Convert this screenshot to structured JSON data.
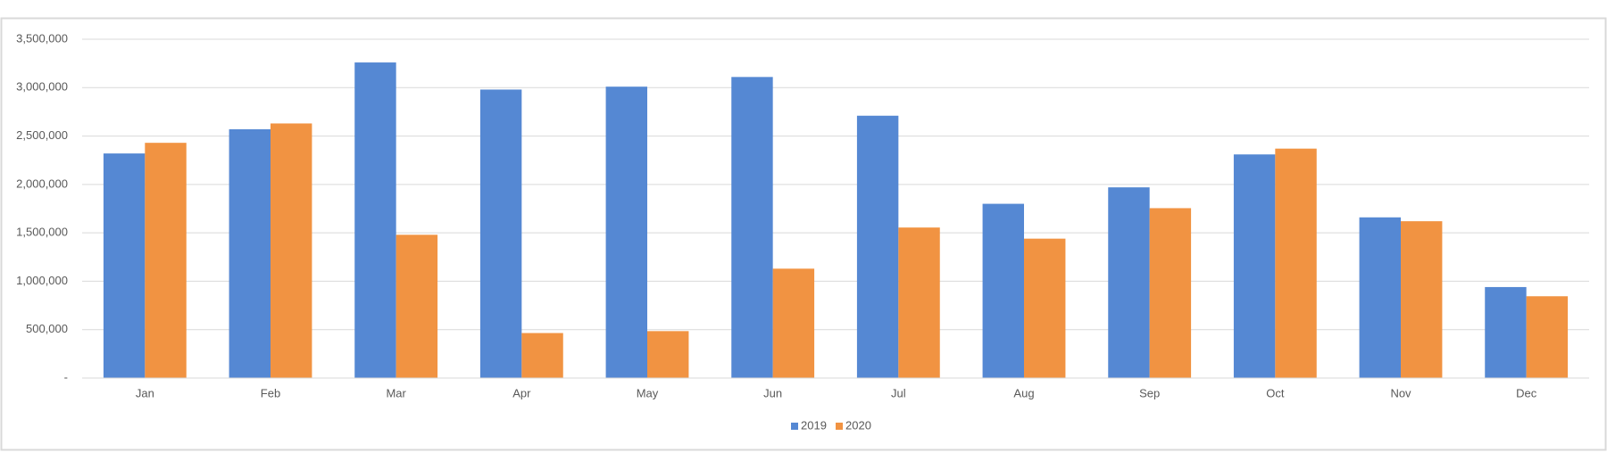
{
  "chart_data": {
    "type": "bar",
    "categories": [
      "Jan",
      "Feb",
      "Mar",
      "Apr",
      "May",
      "Jun",
      "Jul",
      "Aug",
      "Sep",
      "Oct",
      "Nov",
      "Dec"
    ],
    "series": [
      {
        "name": "2019",
        "color": "#5588d3",
        "values": [
          2320000,
          2570000,
          3260000,
          2980000,
          3010000,
          3110000,
          2710000,
          1800000,
          1970000,
          2310000,
          1660000,
          940000
        ]
      },
      {
        "name": "2020",
        "color": "#f19342",
        "values": [
          2430000,
          2630000,
          1480000,
          465000,
          485000,
          1130000,
          1555000,
          1440000,
          1755000,
          2370000,
          1620000,
          845000
        ]
      }
    ],
    "ylim": [
      0,
      3500000
    ],
    "yticks": [
      {
        "value": 0,
        "label": "-"
      },
      {
        "value": 500000,
        "label": "500,000"
      },
      {
        "value": 1000000,
        "label": "1,000,000"
      },
      {
        "value": 1500000,
        "label": "1,500,000"
      },
      {
        "value": 2000000,
        "label": "2,000,000"
      },
      {
        "value": 2500000,
        "label": "2,500,000"
      },
      {
        "value": 3000000,
        "label": "3,000,000"
      },
      {
        "value": 3500000,
        "label": "3,500,000"
      }
    ],
    "grid": true,
    "legend": "bottom"
  }
}
